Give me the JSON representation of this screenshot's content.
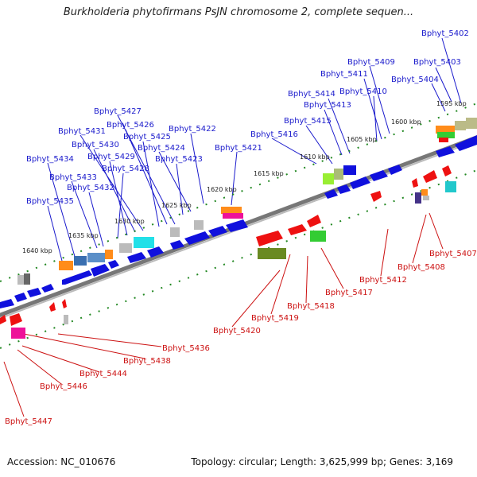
{
  "title": "Burkholderia phytofirmans PsJN chromosome 2, complete sequen...",
  "footer": {
    "accession": "Accession: NC_010676",
    "summary": "Topology: circular; Length: 3,625,999 bp; Genes: 3,169"
  },
  "kbp_ticks": [
    "1595 kbp",
    "1600 kbp",
    "1605 kbp",
    "1610 kbp",
    "1615 kbp",
    "1620 kbp",
    "1625 kbp",
    "1630 kbp",
    "1635 kbp",
    "1640 kbp"
  ],
  "top_genes": [
    "Bphyt_5402",
    "Bphyt_5403",
    "Bphyt_5404",
    "Bphyt_5409",
    "Bphyt_5411",
    "Bphyt_5410",
    "Bphyt_5414",
    "Bphyt_5413",
    "Bphyt_5415",
    "Bphyt_5416",
    "Bphyt_5427",
    "Bphyt_5426",
    "Bphyt_5422",
    "Bphyt_5431",
    "Bphyt_5425",
    "Bphyt_5430",
    "Bphyt_5424",
    "Bphyt_5421",
    "Bphyt_5429",
    "Bphyt_5434",
    "Bphyt_5423",
    "Bphyt_5428",
    "Bphyt_5433",
    "Bphyt_5432",
    "Bphyt_5435"
  ],
  "bottom_genes": [
    "Bphyt_5407",
    "Bphyt_5408",
    "Bphyt_5412",
    "Bphyt_5417",
    "Bphyt_5418",
    "Bphyt_5419",
    "Bphyt_5420",
    "Bphyt_5436",
    "Bphyt_5438",
    "Bphyt_5444",
    "Bphyt_5446",
    "Bphyt_5447"
  ],
  "colors": {
    "forward_label": "#1a1acc",
    "reverse_label": "#cc1111",
    "gene_blue": "#1010dd",
    "gene_red": "#ee1111",
    "tick_green": "#228822",
    "backbone": "#888888"
  }
}
